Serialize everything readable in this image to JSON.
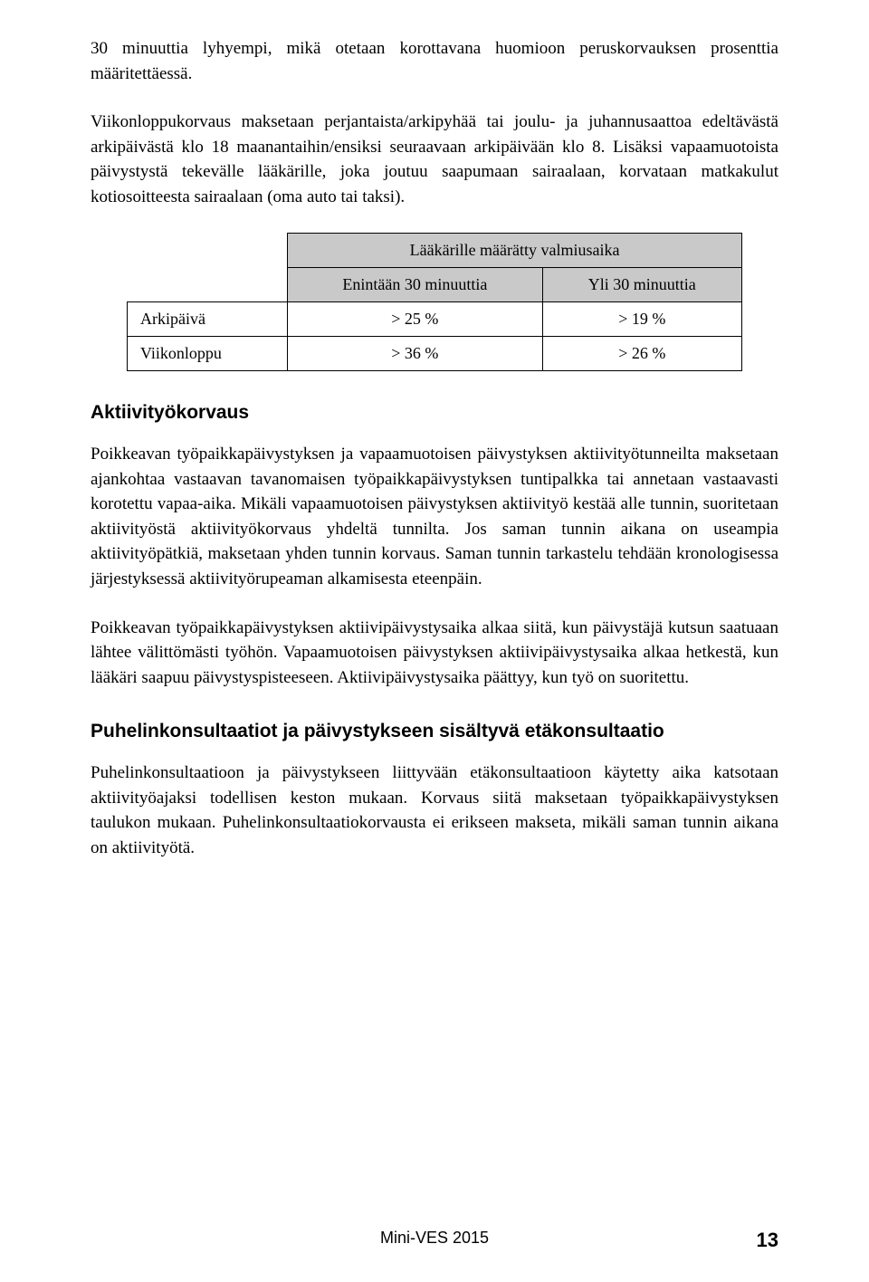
{
  "paragraphs": {
    "p1": "30 minuuttia lyhyempi, mikä otetaan korottavana huomioon peruskorvauksen prosenttia määritettäessä.",
    "p2": "Viikonloppukorvaus maksetaan perjantaista/arkipyhää tai joulu- ja juhannusaattoa edeltävästä arkipäivästä klo 18 maanantaihin/ensiksi seuraavaan arkipäivään klo 8. Lisäksi vapaamuotoista päivystystä tekevälle lääkärille, joka joutuu saapumaan sairaalaan, korvataan matkakulut kotiosoitteesta sairaalaan (oma auto tai taksi).",
    "p3": "Poikkeavan työpaikkapäivystyksen ja vapaamuotoisen päivystyksen aktiivityötunneilta maksetaan ajankohtaa vastaavan tavanomaisen työpaikkapäivystyksen tuntipalkka tai annetaan vastaavasti korotettu vapaa-aika. Mikäli vapaamuotoisen päivystyksen aktiivityö kestää alle tunnin, suoritetaan aktiivityöstä aktiivityökorvaus yhdeltä tunnilta. Jos saman tunnin aikana on useampia aktiivityöpätkiä, maksetaan yhden tunnin korvaus. Saman tunnin tarkastelu tehdään kronologisessa järjestyksessä aktiivityörupeaman alkamisesta eteenpäin.",
    "p4": "Poikkeavan työpaikkapäivystyksen aktiivipäivystysaika alkaa siitä, kun päivystäjä kutsun saatuaan lähtee välittömästi työhön. Vapaamuotoisen päivystyksen aktiivipäivystysaika alkaa hetkestä, kun lääkäri saapuu päivystyspisteeseen. Aktiivipäivystysaika päättyy, kun työ on suoritettu.",
    "p5": "Puhelinkonsultaatioon ja päivystykseen liittyvään etäkonsultaatioon käytetty aika katsotaan aktiivityöajaksi todellisen keston mukaan. Korvaus siitä maksetaan työpaikkapäivystyksen taulukon mukaan. Puhelinkonsultaatiokorvausta ei erikseen makseta, mikäli saman tunnin aikana on aktiivityötä."
  },
  "headings": {
    "h1": "Aktiivityökorvaus",
    "h2": "Puhelinkonsultaatiot ja päivystykseen sisältyvä etäkonsultaatio"
  },
  "table": {
    "span_header": "Lääkärille määrätty valmiusaika",
    "col1": "Enintään 30 minuuttia",
    "col2": "Yli 30 minuuttia",
    "rows": [
      {
        "label": "Arkipäivä",
        "c1": "> 25 %",
        "c2": "> 19 %"
      },
      {
        "label": "Viikonloppu",
        "c1": "> 36 %",
        "c2": "> 26 %"
      }
    ],
    "header_bg": "#c9c9c9",
    "border_color": "#000000"
  },
  "footer": {
    "title": "Mini-VES 2015",
    "page": "13"
  }
}
